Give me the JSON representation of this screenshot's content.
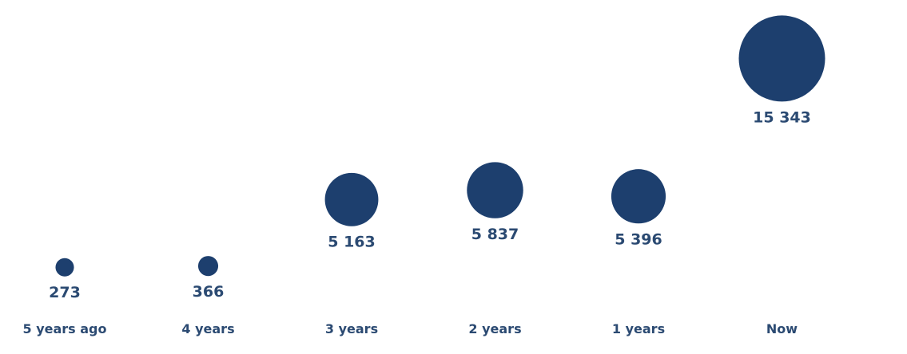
{
  "chart_data": {
    "type": "scatter",
    "categories": [
      "5 years ago",
      "4 years",
      "3 years",
      "2 years",
      "1 years",
      "Now"
    ],
    "values": [
      273,
      366,
      5163,
      5837,
      5396,
      15343
    ],
    "value_labels": [
      "273",
      "366",
      "5 163",
      "5 837",
      "5 396",
      "15 343"
    ],
    "title": "",
    "xlabel": "",
    "ylabel": "",
    "ylim": [
      0,
      16000
    ],
    "bubble_size_encodes": "value",
    "grid": false,
    "legend": "none",
    "colors": {
      "bubble": "#1d3f6e",
      "value_text": "#2b4a72",
      "category_text": "#2b4a72"
    }
  }
}
